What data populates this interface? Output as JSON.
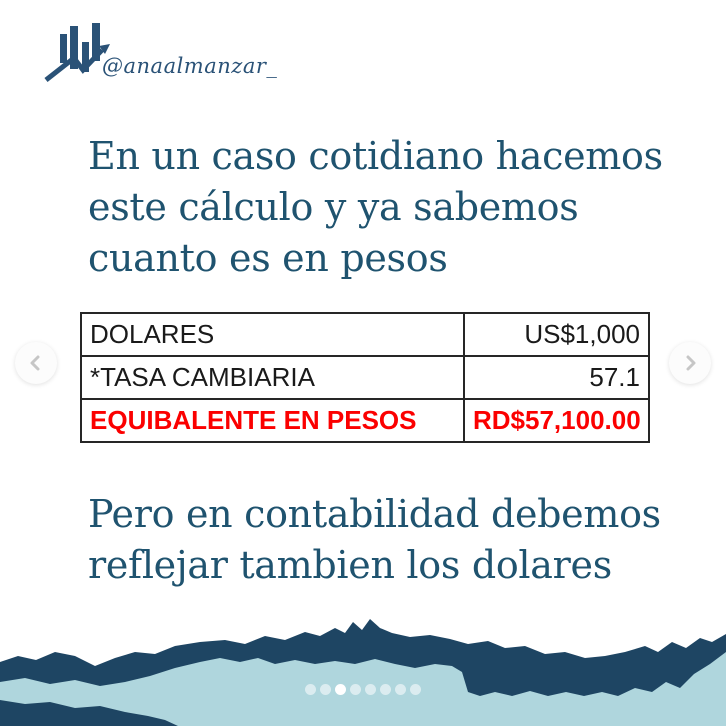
{
  "branding": {
    "handle": "@anaalmanzar_",
    "logo_icon": "bar-chart-arrow-icon"
  },
  "heading": {
    "lines": [
      "En un caso cotidiano hacemos",
      "este cálculo y ya sabemos",
      "cuanto es en pesos"
    ]
  },
  "table": {
    "rows": [
      {
        "label": "DOLARES",
        "value": "US$1,000",
        "highlight": false
      },
      {
        "label": "*TASA CAMBIARIA",
        "value": "57.1",
        "highlight": false
      },
      {
        "label": "EQUIBALENTE EN PESOS",
        "value": "RD$57,100.00",
        "highlight": true
      }
    ]
  },
  "subheading": {
    "lines": [
      "Pero en contabilidad debemos",
      "reflejar tambien los dolares"
    ]
  },
  "carousel": {
    "prev_icon": "chevron-left-icon",
    "next_icon": "chevron-right-icon",
    "dots_total": 8,
    "active_dot_index": 2
  },
  "colors": {
    "navy": "#1e4563",
    "light_blue": "#afd6dd",
    "heading_blue": "#1f536f",
    "logo_blue": "#2a5277",
    "alert_red": "#fb0000"
  }
}
